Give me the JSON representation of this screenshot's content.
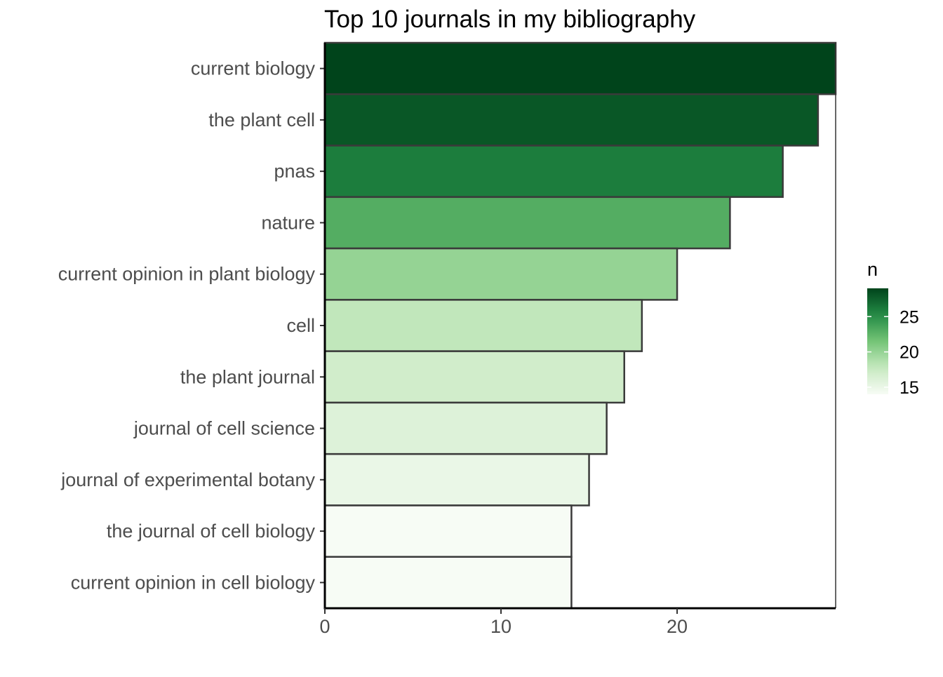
{
  "chart_data": {
    "type": "bar",
    "orientation": "horizontal",
    "title": "Top 10 journals in my bibliography",
    "xlabel": "",
    "ylabel": "",
    "categories": [
      "current biology",
      "the plant cell",
      "pnas",
      "nature",
      "current opinion in plant biology",
      "cell",
      "the plant journal",
      "journal of cell science",
      "journal of experimental botany",
      "the journal of cell biology",
      "current opinion in cell biology"
    ],
    "values": [
      29,
      28,
      26,
      23,
      20,
      18,
      17,
      16,
      15,
      14,
      14
    ],
    "xlim": [
      0,
      29
    ],
    "xticks": [
      0,
      10,
      20
    ],
    "grid": false,
    "legend": {
      "title": "n",
      "type": "colorbar",
      "placement": "right",
      "ticks": [
        15,
        20,
        25
      ],
      "range": [
        14,
        29
      ]
    },
    "colors": {
      "low": "#f7fcf5",
      "high": "#00441b",
      "bar_outline": "#3a3a3a"
    }
  }
}
